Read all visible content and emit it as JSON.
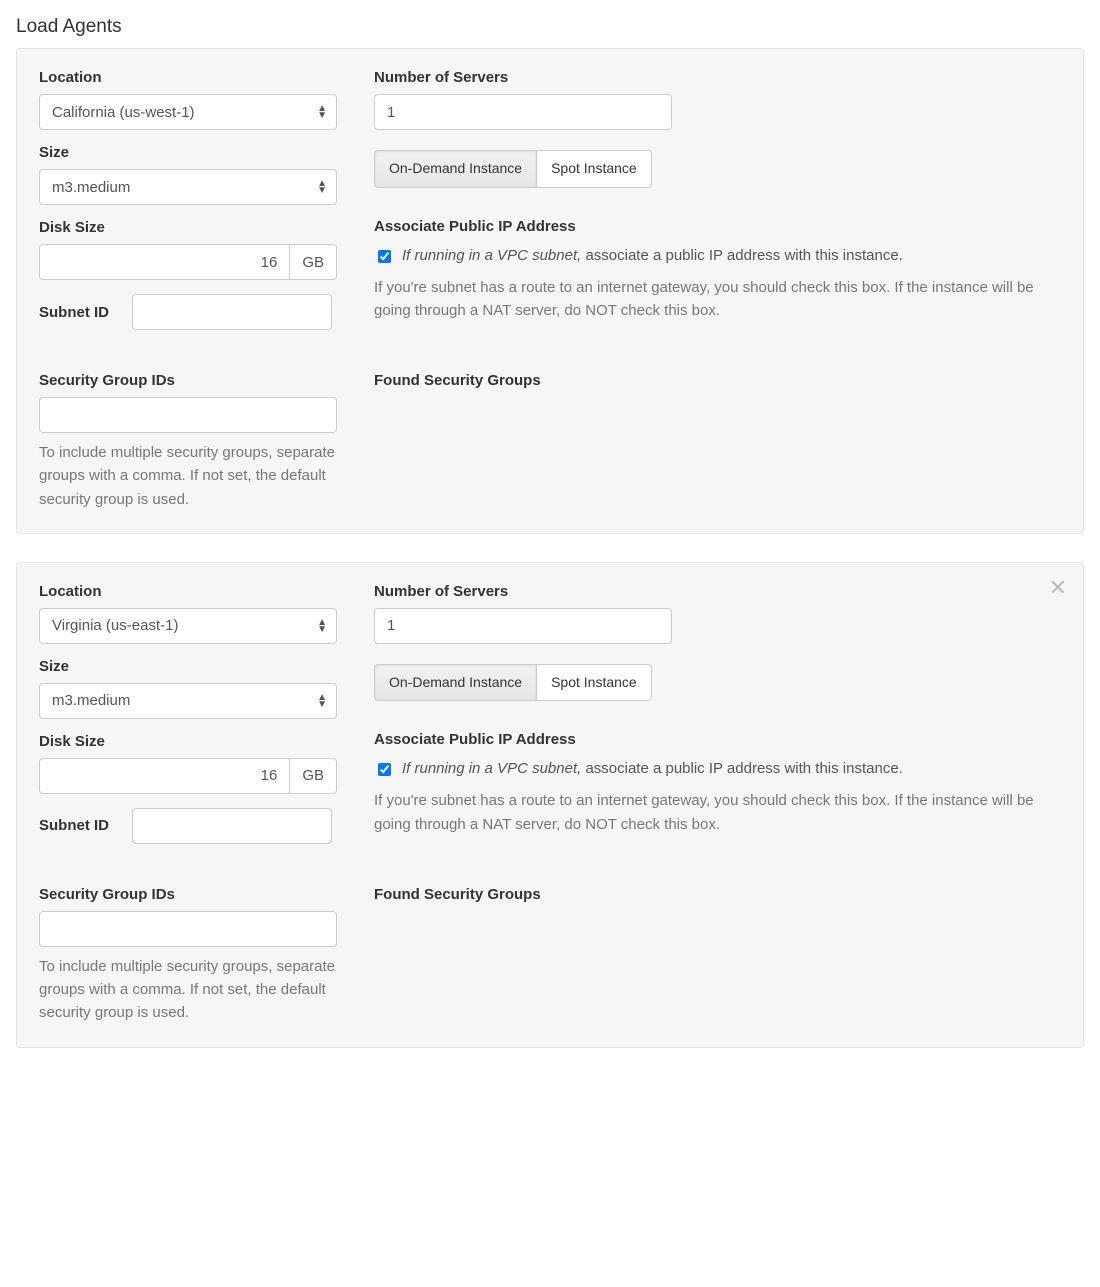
{
  "page_title": "Load Agents",
  "labels": {
    "location": "Location",
    "size": "Size",
    "disk_size": "Disk Size",
    "disk_unit": "GB",
    "subnet_id": "Subnet ID",
    "num_servers": "Number of Servers",
    "on_demand": "On-Demand Instance",
    "spot": "Spot Instance",
    "associate_ip_heading": "Associate Public IP Address",
    "associate_ip_em": "If running in a VPC subnet,",
    "associate_ip_rest": " associate a public IP address with this instance.",
    "associate_ip_help": "If you're subnet has a route to an internet gateway, you should check this box. If the instance will be going through a NAT server, do NOT check this box.",
    "security_group_ids": "Security Group IDs",
    "security_group_help": "To include multiple security groups, separate groups with a comma. If not set, the default security group is used.",
    "found_security_groups": "Found Security Groups"
  },
  "agents": [
    {
      "location": "California (us-west-1)",
      "size": "m3.medium",
      "disk_size": "16",
      "subnet_id": "",
      "num_servers": "1",
      "instance_mode": "on_demand",
      "associate_ip_checked": true,
      "security_group_ids": "",
      "closable": false
    },
    {
      "location": "Virginia (us-east-1)",
      "size": "m3.medium",
      "disk_size": "16",
      "subnet_id": "",
      "num_servers": "1",
      "instance_mode": "on_demand",
      "associate_ip_checked": true,
      "security_group_ids": "",
      "closable": true
    }
  ],
  "colors": {
    "panel_bg": "#f6f6f6",
    "panel_border": "#e4e4e4",
    "text": "#333333",
    "muted": "#777777",
    "input_border": "#cccccc"
  }
}
